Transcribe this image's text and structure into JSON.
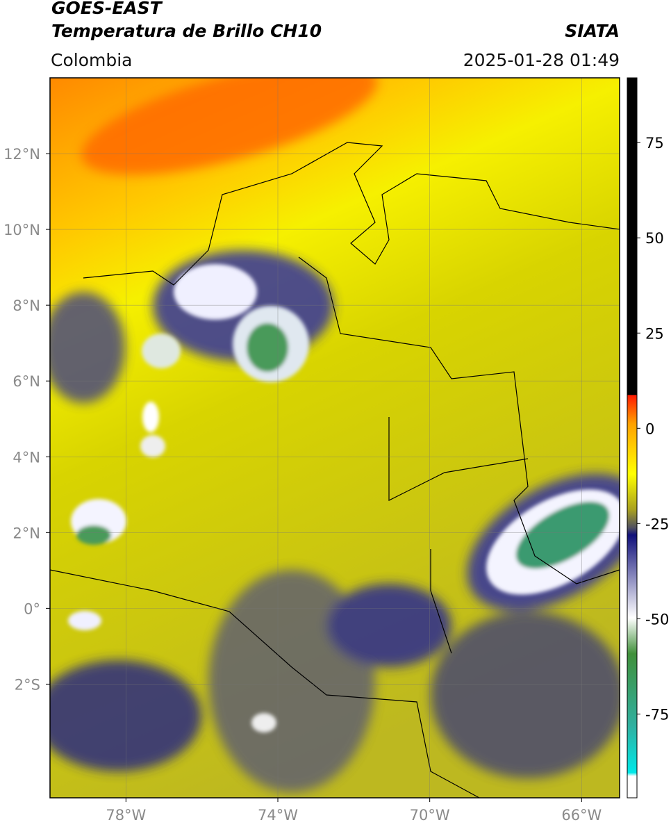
{
  "header": {
    "title": "GOES-EAST",
    "subtitle": "Temperatura de Brillo CH10",
    "source": "SIATA",
    "region": "Colombia",
    "datetime": "2025-01-28 01:49"
  },
  "map": {
    "xlim": [
      -80,
      -65
    ],
    "ylim": [
      -5,
      14
    ],
    "xticks": [
      {
        "value": -78,
        "label": "78°W"
      },
      {
        "value": -74,
        "label": "74°W"
      },
      {
        "value": -70,
        "label": "70°W"
      },
      {
        "value": -66,
        "label": "66°W"
      }
    ],
    "yticks": [
      {
        "value": 12,
        "label": "12°N"
      },
      {
        "value": 10,
        "label": "10°N"
      },
      {
        "value": 8,
        "label": "8°N"
      },
      {
        "value": 6,
        "label": "6°N"
      },
      {
        "value": 4,
        "label": "4°N"
      },
      {
        "value": 2,
        "label": "2°N"
      },
      {
        "value": 0,
        "label": "0°"
      },
      {
        "value": -2,
        "label": "2°S"
      }
    ],
    "grid": true
  },
  "colorbar": {
    "lim": [
      -97,
      92
    ],
    "ticks": [
      75,
      50,
      25,
      0,
      -25,
      -50,
      -75
    ]
  }
}
